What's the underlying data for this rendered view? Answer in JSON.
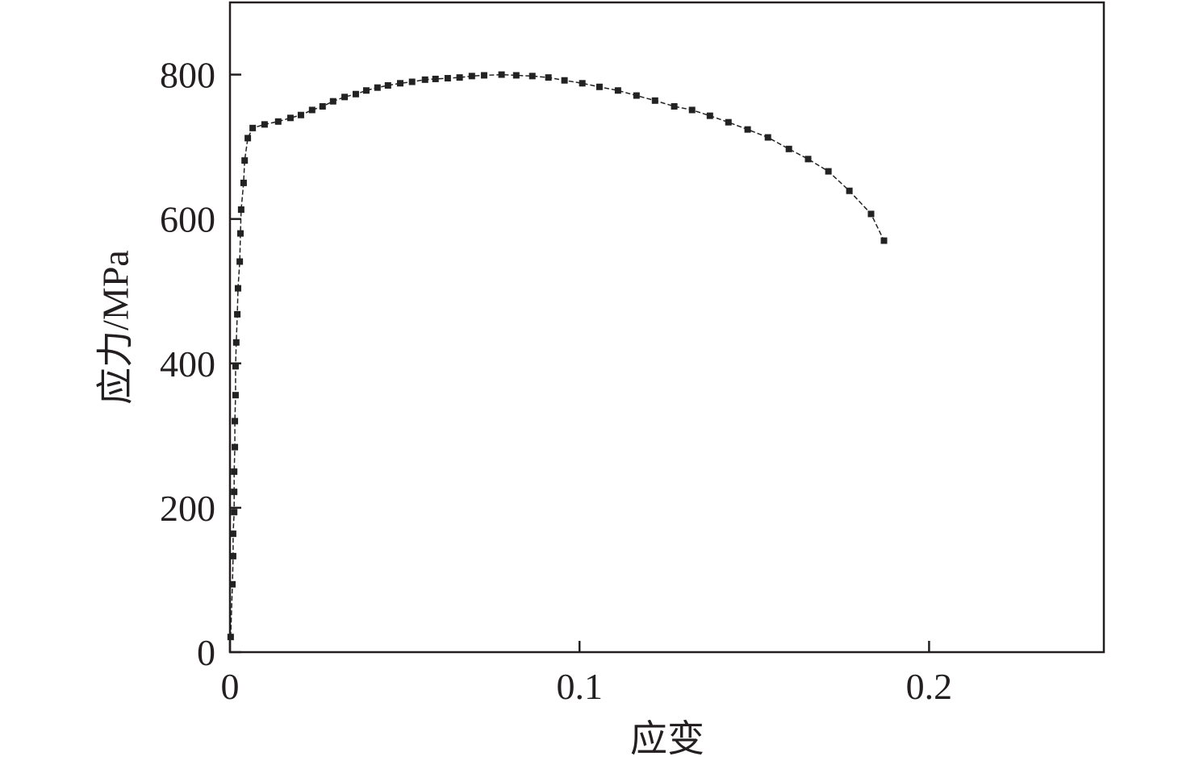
{
  "chart_data": {
    "type": "line",
    "xlabel": "应变",
    "ylabel": "应力/MPa",
    "color": "#222222",
    "x": [
      0.0002,
      0.0007,
      0.0009,
      0.0009,
      0.0012,
      0.0012,
      0.0012,
      0.0014,
      0.0014,
      0.0016,
      0.0016,
      0.0018,
      0.0021,
      0.0023,
      0.0028,
      0.003,
      0.0032,
      0.0039,
      0.0042,
      0.0051,
      0.0065,
      0.0099,
      0.0138,
      0.0173,
      0.0203,
      0.0235,
      0.0265,
      0.0295,
      0.0328,
      0.036,
      0.039,
      0.0422,
      0.0452,
      0.0487,
      0.0521,
      0.0558,
      0.0588,
      0.0623,
      0.0657,
      0.0692,
      0.0727,
      0.0777,
      0.0819,
      0.0865,
      0.0911,
      0.0957,
      0.1008,
      0.1057,
      0.111,
      0.1163,
      0.1216,
      0.1271,
      0.1322,
      0.1373,
      0.1426,
      0.1481,
      0.1539,
      0.1599,
      0.1654,
      0.1712,
      0.1772,
      0.1834,
      0.1871
    ],
    "values": [
      21,
      94,
      133,
      164,
      194,
      222,
      250,
      284,
      320,
      356,
      396,
      429,
      468,
      504,
      541,
      580,
      613,
      650,
      681,
      712,
      726,
      731,
      735,
      740,
      744,
      751,
      756,
      763,
      769,
      773,
      778,
      782,
      785,
      788,
      790,
      793,
      794,
      795,
      796,
      798,
      799,
      800,
      799,
      798,
      796,
      792,
      788,
      783,
      778,
      771,
      764,
      756,
      751,
      743,
      734,
      724,
      713,
      697,
      683,
      666,
      639,
      607,
      570
    ],
    "xlim": [
      0,
      0.25
    ],
    "xticks": [
      0,
      0.1,
      0.2
    ],
    "ylim": [
      0,
      900
    ],
    "yticks": [
      0,
      200,
      400,
      600,
      800
    ]
  }
}
